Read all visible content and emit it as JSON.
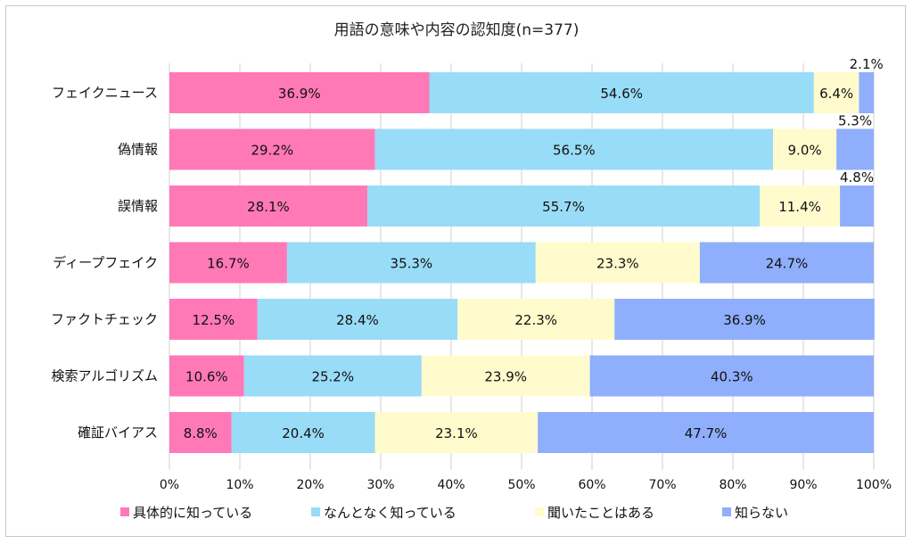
{
  "chart_data": {
    "type": "bar",
    "orientation": "horizontal",
    "stacked": "percent",
    "title": "用語の意味や内容の認知度(n=377)",
    "categories": [
      "フェイクニュース",
      "偽情報",
      "誤情報",
      "ディープフェイク",
      "ファクトチェック",
      "検索アルゴリズム",
      "確証バイアス"
    ],
    "series": [
      {
        "name": "具体的に知っている",
        "color": "#ff79b6",
        "values": [
          36.9,
          29.2,
          28.1,
          16.7,
          12.5,
          10.6,
          8.8
        ],
        "labels": [
          "36.9%",
          "29.2%",
          "28.1%",
          "16.7%",
          "12.5%",
          "10.6%",
          "8.8%"
        ]
      },
      {
        "name": "なんとなく知っている",
        "color": "#99dcf7",
        "values": [
          54.6,
          56.5,
          55.7,
          35.3,
          28.4,
          25.2,
          20.4
        ],
        "labels": [
          "54.6%",
          "56.5%",
          "55.7%",
          "35.3%",
          "28.4%",
          "25.2%",
          "20.4%"
        ]
      },
      {
        "name": "聞いたことはある",
        "color": "#fffbcc",
        "values": [
          6.4,
          9.0,
          11.4,
          23.3,
          22.3,
          23.9,
          23.1
        ],
        "labels": [
          "6.4%",
          "9.0%",
          "11.4%",
          "23.3%",
          "22.3%",
          "23.9%",
          "23.1%"
        ]
      },
      {
        "name": "知らない",
        "color": "#8faefb",
        "values": [
          2.1,
          5.3,
          4.8,
          24.7,
          36.9,
          40.3,
          47.7
        ],
        "labels": [
          "2.1%",
          "5.3%",
          "4.8%",
          "24.7%",
          "36.9%",
          "40.3%",
          "47.7%"
        ]
      }
    ],
    "xlim": [
      0,
      100
    ],
    "xticks": [
      "0%",
      "10%",
      "20%",
      "30%",
      "40%",
      "50%",
      "60%",
      "70%",
      "80%",
      "90%",
      "100%"
    ],
    "grid": true,
    "legend_position": "bottom"
  }
}
